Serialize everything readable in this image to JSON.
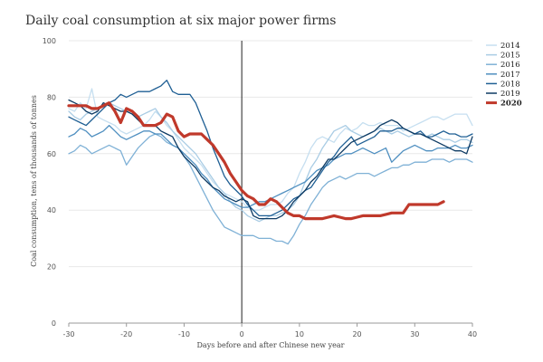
{
  "chart_data": {
    "type": "line",
    "title": "Daily coal consumption at six major power firms",
    "xlabel": "Days before and after Chinese new year",
    "ylabel": "Coal consumption, tens of thousands of tonnes",
    "xlim": [
      -30,
      40
    ],
    "ylim": [
      0,
      100
    ],
    "xticks": [
      -30,
      -20,
      -10,
      0,
      10,
      20,
      30,
      40
    ],
    "xtick_labels": [
      "-30",
      "-20",
      "-10",
      "0",
      "10",
      "20",
      "30",
      "40"
    ],
    "yticks": [
      0,
      20,
      40,
      60,
      80,
      100
    ],
    "ytick_labels": [
      "0",
      "20",
      "40",
      "60",
      "80",
      "100"
    ],
    "grid": "horizontal",
    "legend_position": "top-right",
    "reference_line_x": 0,
    "series": [
      {
        "name": "2014",
        "color": "#c6dff0",
        "highlight": false,
        "x": [
          -30,
          -29,
          -28,
          -27,
          -26,
          -25,
          -24,
          -23,
          -22,
          -21,
          -20,
          -19,
          -18,
          -17,
          -16,
          -15,
          -14,
          -13,
          -12,
          -11,
          -10,
          -9,
          -8,
          -7,
          -6,
          -5,
          -4,
          -3,
          -2,
          -1,
          0,
          1,
          2,
          3,
          4,
          5,
          6,
          7,
          8,
          9,
          10,
          11,
          12,
          13,
          14,
          15,
          16,
          17,
          18,
          19,
          20,
          21,
          22,
          23,
          24,
          25,
          26,
          27,
          28,
          29,
          30,
          31,
          32,
          33,
          34,
          35,
          36,
          37,
          38,
          39,
          40
        ],
        "values": [
          76,
          75,
          78,
          76,
          83,
          73,
          72,
          71,
          70,
          68,
          67,
          68,
          69,
          70,
          72,
          75,
          73,
          70,
          68,
          65,
          62,
          60,
          58,
          56,
          53,
          50,
          48,
          46,
          45,
          44,
          43,
          41,
          40,
          40,
          41,
          42,
          42,
          43,
          46,
          48,
          53,
          57,
          62,
          65,
          66,
          65,
          64,
          67,
          69,
          68,
          69,
          71,
          70,
          70,
          71,
          70,
          70,
          70,
          68,
          69,
          70,
          71,
          72,
          73,
          73,
          72,
          73,
          74,
          74,
          74,
          70
        ]
      },
      {
        "name": "2015",
        "color": "#a9cce4",
        "highlight": false,
        "x": [
          -30,
          -29,
          -28,
          -27,
          -26,
          -25,
          -24,
          -23,
          -22,
          -21,
          -20,
          -19,
          -18,
          -17,
          -16,
          -15,
          -14,
          -13,
          -12,
          -11,
          -10,
          -9,
          -8,
          -7,
          -6,
          -5,
          -4,
          -3,
          -2,
          -1,
          0,
          1,
          2,
          3,
          4,
          5,
          6,
          7,
          8,
          9,
          10,
          11,
          12,
          13,
          14,
          15,
          16,
          17,
          18,
          19,
          20,
          21,
          22,
          23,
          24,
          25,
          26,
          27,
          28,
          29,
          30,
          31,
          32,
          33,
          34,
          35,
          36,
          37,
          38,
          39,
          40
        ],
        "values": [
          75,
          73,
          72,
          74,
          75,
          76,
          77,
          78,
          77,
          76,
          75,
          74,
          73,
          74,
          75,
          76,
          73,
          71,
          68,
          66,
          64,
          62,
          60,
          57,
          54,
          51,
          48,
          46,
          43,
          41,
          40,
          38,
          37,
          36,
          37,
          38,
          38,
          39,
          40,
          42,
          45,
          50,
          55,
          58,
          62,
          65,
          68,
          69,
          70,
          68,
          67,
          66,
          67,
          68,
          69,
          68,
          67,
          68,
          67,
          66,
          67,
          67,
          66,
          67,
          66,
          65,
          65,
          64,
          65,
          65,
          64
        ]
      },
      {
        "name": "2016",
        "color": "#7fb1d6",
        "highlight": false,
        "x": [
          -30,
          -29,
          -28,
          -27,
          -26,
          -25,
          -24,
          -23,
          -22,
          -21,
          -20,
          -19,
          -18,
          -17,
          -16,
          -15,
          -14,
          -13,
          -12,
          -11,
          -10,
          -9,
          -8,
          -7,
          -6,
          -5,
          -4,
          -3,
          -2,
          -1,
          0,
          1,
          2,
          3,
          4,
          5,
          6,
          7,
          8,
          9,
          10,
          11,
          12,
          13,
          14,
          15,
          16,
          17,
          18,
          19,
          20,
          21,
          22,
          23,
          24,
          25,
          26,
          27,
          28,
          29,
          30,
          31,
          32,
          33,
          34,
          35,
          36,
          37,
          38,
          39,
          40
        ],
        "values": [
          60,
          61,
          63,
          62,
          60,
          61,
          62,
          63,
          62,
          61,
          56,
          59,
          62,
          64,
          66,
          67,
          66,
          64,
          63,
          62,
          59,
          56,
          52,
          48,
          44,
          40,
          37,
          34,
          33,
          32,
          31,
          31,
          31,
          30,
          30,
          30,
          29,
          29,
          28,
          31,
          35,
          38,
          42,
          45,
          48,
          50,
          51,
          52,
          51,
          52,
          53,
          53,
          53,
          52,
          53,
          54,
          55,
          55,
          56,
          56,
          57,
          57,
          57,
          58,
          58,
          58,
          57,
          58,
          58,
          58,
          57
        ]
      },
      {
        "name": "2017",
        "color": "#4f8fc0",
        "highlight": false,
        "x": [
          -30,
          -29,
          -28,
          -27,
          -26,
          -25,
          -24,
          -23,
          -22,
          -21,
          -20,
          -19,
          -18,
          -17,
          -16,
          -15,
          -14,
          -13,
          -12,
          -11,
          -10,
          -9,
          -8,
          -7,
          -6,
          -5,
          -4,
          -3,
          -2,
          -1,
          0,
          1,
          2,
          3,
          4,
          5,
          6,
          7,
          8,
          9,
          10,
          11,
          12,
          13,
          14,
          15,
          16,
          17,
          18,
          19,
          20,
          21,
          22,
          23,
          24,
          25,
          26,
          27,
          28,
          29,
          30,
          31,
          32,
          33,
          34,
          35,
          36,
          37,
          38,
          39,
          40
        ],
        "values": [
          66,
          67,
          69,
          68,
          66,
          67,
          68,
          70,
          68,
          66,
          65,
          66,
          67,
          68,
          68,
          67,
          67,
          65,
          63,
          62,
          60,
          58,
          56,
          53,
          51,
          48,
          46,
          44,
          43,
          42,
          41,
          41,
          42,
          43,
          43,
          44,
          45,
          46,
          47,
          48,
          49,
          50,
          52,
          54,
          55,
          56,
          58,
          59,
          60,
          60,
          61,
          62,
          61,
          60,
          61,
          62,
          57,
          59,
          61,
          62,
          63,
          62,
          61,
          61,
          62,
          62,
          62,
          63,
          62,
          62,
          63
        ]
      },
      {
        "name": "2018",
        "color": "#1f5f94",
        "highlight": false,
        "x": [
          -30,
          -29,
          -28,
          -27,
          -26,
          -25,
          -24,
          -23,
          -22,
          -21,
          -20,
          -19,
          -18,
          -17,
          -16,
          -15,
          -14,
          -13,
          -12,
          -11,
          -10,
          -9,
          -8,
          -7,
          -6,
          -5,
          -4,
          -3,
          -2,
          -1,
          0,
          1,
          2,
          3,
          4,
          5,
          6,
          7,
          8,
          9,
          10,
          11,
          12,
          13,
          14,
          15,
          16,
          17,
          18,
          19,
          20,
          21,
          22,
          23,
          24,
          25,
          26,
          27,
          28,
          29,
          30,
          31,
          32,
          33,
          34,
          35,
          36,
          37,
          38,
          39,
          40
        ],
        "values": [
          73,
          72,
          71,
          70,
          72,
          74,
          76,
          78,
          79,
          81,
          80,
          81,
          82,
          82,
          82,
          83,
          84,
          86,
          82,
          81,
          81,
          81,
          78,
          73,
          68,
          62,
          57,
          52,
          49,
          47,
          45,
          42,
          40,
          38,
          38,
          38,
          39,
          40,
          42,
          44,
          45,
          47,
          48,
          51,
          54,
          57,
          59,
          62,
          64,
          66,
          63,
          64,
          65,
          66,
          68,
          68,
          68,
          69,
          69,
          68,
          67,
          68,
          66,
          66,
          67,
          68,
          67,
          67,
          66,
          66,
          67
        ]
      },
      {
        "name": "2019",
        "color": "#0d3a63",
        "highlight": false,
        "x": [
          -30,
          -29,
          -28,
          -27,
          -26,
          -25,
          -24,
          -23,
          -22,
          -21,
          -20,
          -19,
          -18,
          -17,
          -16,
          -15,
          -14,
          -13,
          -12,
          -11,
          -10,
          -9,
          -8,
          -7,
          -6,
          -5,
          -4,
          -3,
          -2,
          -1,
          0,
          1,
          2,
          3,
          4,
          5,
          6,
          7,
          8,
          9,
          10,
          11,
          12,
          13,
          14,
          15,
          16,
          17,
          18,
          19,
          20,
          21,
          22,
          23,
          24,
          25,
          26,
          27,
          28,
          29,
          30,
          31,
          32,
          33,
          34,
          35,
          36,
          37,
          38,
          39,
          40
        ],
        "values": [
          79,
          78,
          77,
          75,
          74,
          75,
          78,
          77,
          76,
          75,
          75,
          74,
          72,
          70,
          70,
          70,
          68,
          67,
          66,
          62,
          59,
          57,
          55,
          52,
          50,
          48,
          47,
          45,
          44,
          43,
          44,
          43,
          38,
          37,
          37,
          37,
          37,
          38,
          40,
          43,
          45,
          47,
          50,
          52,
          55,
          58,
          58,
          60,
          62,
          64,
          65,
          66,
          67,
          68,
          70,
          71,
          72,
          71,
          69,
          68,
          67,
          67,
          66,
          65,
          64,
          63,
          62,
          61,
          61,
          60,
          66
        ]
      },
      {
        "name": "2020",
        "color": "#c0392b",
        "highlight": true,
        "x": [
          -30,
          -29,
          -28,
          -27,
          -26,
          -25,
          -24,
          -23,
          -22,
          -21,
          -20,
          -19,
          -18,
          -17,
          -16,
          -15,
          -14,
          -13,
          -12,
          -11,
          -10,
          -9,
          -8,
          -7,
          -6,
          -5,
          -4,
          -3,
          -2,
          -1,
          0,
          1,
          2,
          3,
          4,
          5,
          6,
          7,
          8,
          9,
          10,
          11,
          12,
          13,
          14,
          15,
          16,
          17,
          18,
          19,
          20,
          21,
          22,
          23,
          24,
          25,
          26,
          27,
          28,
          29,
          30,
          31,
          32,
          33,
          34,
          35
        ],
        "values": [
          77,
          77,
          77,
          77,
          76,
          76,
          77,
          78,
          75,
          71,
          76,
          75,
          73,
          70,
          70,
          70,
          71,
          74,
          73,
          68,
          66,
          67,
          67,
          67,
          65,
          63,
          60,
          57,
          53,
          50,
          47,
          45,
          44,
          42,
          42,
          44,
          43,
          41,
          39,
          38,
          38,
          37,
          37,
          37,
          37,
          37.5,
          38,
          37.5,
          37,
          37,
          37.5,
          38,
          38,
          38,
          38,
          38.5,
          39,
          39,
          39,
          42,
          42,
          42,
          42,
          42,
          42,
          43
        ]
      }
    ]
  }
}
